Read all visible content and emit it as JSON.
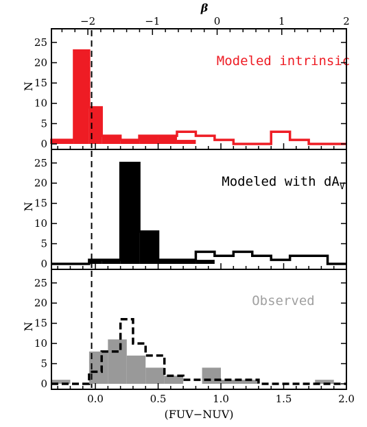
{
  "chart_data": {
    "type": "histogram",
    "xlabel": "(FUV−NUV)",
    "top_axis_label": "β",
    "xlim": [
      -0.35,
      2.0
    ],
    "xticks": [
      {
        "v": 0.0,
        "label": "0.0"
      },
      {
        "v": 0.5,
        "label": "0.5"
      },
      {
        "v": 1.0,
        "label": "1.0"
      },
      {
        "v": 1.5,
        "label": "1.5"
      },
      {
        "v": 2.0,
        "label": "2.0"
      }
    ],
    "top_xticks": [
      {
        "v": -0.06,
        "label": "−2"
      },
      {
        "v": 0.455,
        "label": "−1"
      },
      {
        "v": 0.97,
        "label": "0"
      },
      {
        "v": 1.485,
        "label": "1"
      },
      {
        "v": 2.0,
        "label": "2"
      }
    ],
    "beta_markers": [
      -0.06,
      0.455,
      0.97,
      1.485,
      2.0
    ],
    "ylim": [
      0,
      27
    ],
    "yticks": [
      0,
      5,
      10,
      15,
      20,
      25
    ],
    "ylabel": "N",
    "dashed_reference_x": -0.03,
    "colors": {
      "intrinsic": "#ee1c24",
      "dav": "#000000",
      "observed_fill": "#999999",
      "observed_label": "#a0a0a0"
    },
    "panels": [
      {
        "label": "Modeled intrinsic",
        "label_color": "#ee1c24",
        "filled_edges": [
          -0.35,
          -0.17,
          -0.05,
          0.05,
          0.2,
          0.35,
          0.5,
          0.65,
          0.8,
          0.95,
          1.1,
          1.25,
          1.4,
          1.55,
          1.7,
          1.85,
          2.0
        ],
        "filled_counts": [
          1,
          23,
          9,
          2,
          1,
          2,
          2,
          1,
          0,
          0,
          0,
          0,
          0,
          0,
          0,
          0
        ],
        "outline_edges": [
          -0.35,
          -0.17,
          -0.05,
          0.05,
          0.2,
          0.35,
          0.5,
          0.65,
          0.8,
          0.95,
          1.1,
          1.25,
          1.4,
          1.55,
          1.7,
          1.85,
          2.0
        ],
        "outline_counts": [
          1,
          23,
          9,
          2,
          1,
          2,
          2,
          3,
          2,
          1,
          0,
          0,
          3,
          1,
          0,
          0
        ],
        "outline_color": "#ee1c24"
      },
      {
        "label": "Modeled with dA",
        "label_sub": "V",
        "label_color": "#000000",
        "filled_edges": [
          -0.35,
          -0.05,
          0.05,
          0.2,
          0.35,
          0.5,
          0.65,
          0.8,
          0.95,
          1.1,
          1.25,
          1.4,
          1.55,
          1.7,
          1.85,
          2.0
        ],
        "filled_counts": [
          0,
          1,
          1,
          25,
          8,
          1,
          1,
          1,
          0,
          0,
          0,
          0,
          0,
          0,
          0
        ],
        "outline_edges": [
          -0.35,
          -0.05,
          0.05,
          0.2,
          0.35,
          0.5,
          0.65,
          0.8,
          0.95,
          1.1,
          1.25,
          1.4,
          1.55,
          1.7,
          1.85,
          2.0
        ],
        "outline_counts": [
          0,
          1,
          1,
          25,
          8,
          1,
          1,
          3,
          2,
          3,
          2,
          1,
          2,
          2,
          0
        ],
        "outline_color": "#000000"
      },
      {
        "label": "Observed",
        "label_color": "#a0a0a0",
        "filled_edges": [
          -0.35,
          -0.2,
          -0.05,
          0.1,
          0.25,
          0.4,
          0.55,
          0.7,
          0.85,
          1.0,
          1.15,
          1.3,
          1.45,
          1.6,
          1.75,
          1.9,
          2.0
        ],
        "filled_counts": [
          1,
          0,
          8,
          11,
          7,
          4,
          2,
          0,
          4,
          1,
          1,
          0,
          0,
          0,
          1,
          0
        ],
        "outline_edges": [
          -0.35,
          -0.05,
          0.05,
          0.2,
          0.3,
          0.4,
          0.55,
          0.7,
          0.85,
          1.0,
          1.15,
          1.3,
          1.45,
          1.6,
          2.0
        ],
        "outline_counts": [
          0,
          3,
          8,
          16,
          10,
          7,
          2,
          1,
          1,
          1,
          1,
          0,
          0,
          0
        ],
        "outline_color": "#000000",
        "outline_dashed": true
      }
    ]
  }
}
